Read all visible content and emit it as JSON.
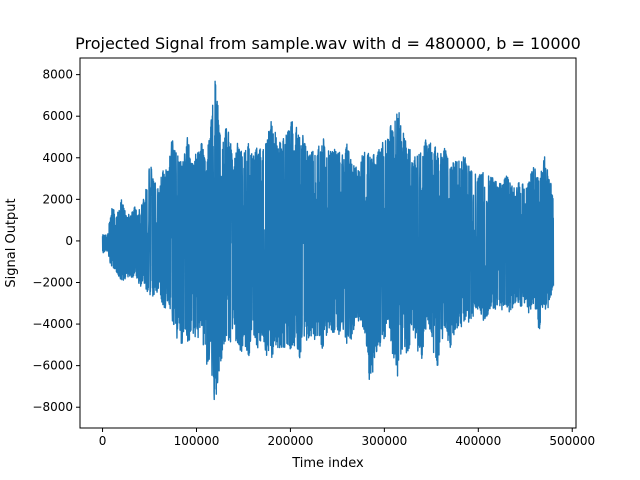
{
  "chart_data": {
    "type": "line",
    "title": "Projected Signal from sample.wav with d = 480000, b = 10000",
    "xlabel": "Time index",
    "ylabel": "Signal Output",
    "xlim": [
      -24000,
      504000
    ],
    "ylim": [
      -9000,
      8800
    ],
    "xticks": [
      0,
      100000,
      200000,
      300000,
      400000,
      500000
    ],
    "xtick_labels": [
      "0",
      "100000",
      "200000",
      "300000",
      "400000",
      "500000"
    ],
    "yticks": [
      -8000,
      -6000,
      -4000,
      -2000,
      0,
      2000,
      4000,
      6000,
      8000
    ],
    "ytick_labels": [
      "−8000",
      "−6000",
      "−4000",
      "−2000",
      "0",
      "2000",
      "4000",
      "6000",
      "8000"
    ],
    "grid": false,
    "line_color": "#1f77b4",
    "series": [
      {
        "x": [
          0,
          5000,
          10000,
          15000,
          20000,
          25000,
          30000,
          35000,
          40000,
          45000,
          50000,
          55000,
          60000,
          65000,
          70000,
          75000,
          80000,
          85000,
          90000,
          95000,
          100000,
          105000,
          110000,
          115000,
          120000,
          125000,
          130000,
          135000,
          140000,
          145000,
          150000,
          155000,
          160000,
          165000,
          170000,
          175000,
          180000,
          185000,
          190000,
          195000,
          200000,
          205000,
          210000,
          215000,
          220000,
          225000,
          230000,
          235000,
          240000,
          245000,
          250000,
          255000,
          260000,
          265000,
          270000,
          275000,
          280000,
          285000,
          290000,
          295000,
          300000,
          305000,
          310000,
          315000,
          320000,
          325000,
          330000,
          335000,
          340000,
          345000,
          350000,
          355000,
          360000,
          365000,
          370000,
          375000,
          380000,
          385000,
          390000,
          395000,
          400000,
          405000,
          410000,
          415000,
          420000,
          425000,
          430000,
          435000,
          440000,
          445000,
          450000,
          455000,
          460000,
          465000,
          470000,
          475000,
          480000
        ],
        "upper": [
          300,
          300,
          1700,
          1200,
          2000,
          1300,
          1300,
          1700,
          1500,
          2200,
          3900,
          3000,
          2500,
          3800,
          3500,
          5400,
          4200,
          3700,
          5200,
          3600,
          4300,
          5000,
          3700,
          5600,
          7900,
          5500,
          5700,
          5200,
          3800,
          5200,
          4100,
          4900,
          4000,
          4600,
          4300,
          5100,
          5900,
          5200,
          4700,
          5200,
          6100,
          5400,
          5700,
          4800,
          4200,
          4400,
          4700,
          5100,
          4800,
          4500,
          4400,
          4200,
          4700,
          3800,
          3600,
          3900,
          4700,
          4000,
          4300,
          4500,
          4900,
          5900,
          5600,
          6500,
          5200,
          4800,
          4000,
          4100,
          4300,
          5000,
          4700,
          4500,
          4200,
          4600,
          3700,
          3800,
          3900,
          4100,
          3600,
          3400,
          3100,
          3400,
          3200,
          3100,
          2900,
          2700,
          3200,
          2700,
          2500,
          3100,
          2600,
          3100,
          3800,
          2900,
          4200,
          3300,
          2200
        ],
        "lower": [
          -600,
          -500,
          -1400,
          -1500,
          -2000,
          -1800,
          -1800,
          -1700,
          -2200,
          -2200,
          -2800,
          -2700,
          -2500,
          -3200,
          -3300,
          -4200,
          -4800,
          -5100,
          -5100,
          -4500,
          -4900,
          -4200,
          -6000,
          -5800,
          -8200,
          -6200,
          -4900,
          -5200,
          -4200,
          -6000,
          -4900,
          -5700,
          -4800,
          -5200,
          -4600,
          -5600,
          -5700,
          -5100,
          -5300,
          -5100,
          -5800,
          -4900,
          -5900,
          -4600,
          -5000,
          -4800,
          -4600,
          -5400,
          -4400,
          -4400,
          -4700,
          -4100,
          -5100,
          -4800,
          -3900,
          -3800,
          -4700,
          -7400,
          -5400,
          -5200,
          -4700,
          -4200,
          -6000,
          -6700,
          -5100,
          -5800,
          -4400,
          -5400,
          -5700,
          -4300,
          -4600,
          -6900,
          -5200,
          -4400,
          -5200,
          -4500,
          -4100,
          -4200,
          -3900,
          -3600,
          -3400,
          -3900,
          -3700,
          -3700,
          -3100,
          -3400,
          -3300,
          -3500,
          -2900,
          -3200,
          -3000,
          -3700,
          -3100,
          -4400,
          -3400,
          -3200,
          -2300
        ]
      }
    ]
  }
}
